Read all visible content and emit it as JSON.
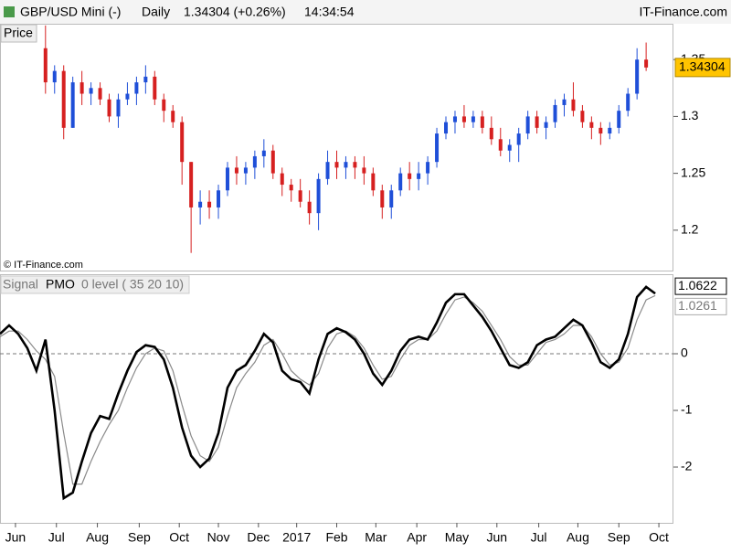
{
  "header": {
    "instrument": "GBP/USD Mini (-)",
    "period": "Daily",
    "quote": "1.34304 (+0.26%)",
    "time": "14:34:54",
    "brand": "IT-Finance.com"
  },
  "chart_data": [
    {
      "type": "candlestick",
      "panel_label": "Price",
      "watermark": "© IT-Finance.com",
      "up_color": "#1f4fd8",
      "down_color": "#d62020",
      "xlim": [
        0,
        74
      ],
      "ylim": [
        1.1645,
        1.3815
      ],
      "yticks": [
        1.2,
        1.25,
        1.3,
        1.35
      ],
      "x": [
        5,
        6,
        7,
        8,
        9,
        10,
        11,
        12,
        13,
        14,
        15,
        16,
        17,
        18,
        19,
        20,
        21,
        22,
        23,
        24,
        25,
        26,
        27,
        28,
        29,
        30,
        31,
        32,
        33,
        34,
        35,
        36,
        37,
        38,
        39,
        40,
        41,
        42,
        43,
        44,
        45,
        46,
        47,
        48,
        49,
        50,
        51,
        52,
        53,
        54,
        55,
        56,
        57,
        58,
        59,
        60,
        61,
        62,
        63,
        64,
        65,
        66,
        67,
        68,
        69,
        70,
        71
      ],
      "open": [
        1.36,
        1.33,
        1.34,
        1.29,
        1.33,
        1.32,
        1.325,
        1.315,
        1.3,
        1.315,
        1.32,
        1.33,
        1.335,
        1.315,
        1.305,
        1.295,
        1.26,
        1.22,
        1.225,
        1.22,
        1.235,
        1.255,
        1.25,
        1.255,
        1.265,
        1.27,
        1.25,
        1.24,
        1.235,
        1.225,
        1.215,
        1.245,
        1.26,
        1.255,
        1.26,
        1.255,
        1.25,
        1.235,
        1.22,
        1.235,
        1.25,
        1.245,
        1.25,
        1.26,
        1.285,
        1.295,
        1.3,
        1.295,
        1.3,
        1.29,
        1.28,
        1.27,
        1.275,
        1.285,
        1.3,
        1.29,
        1.295,
        1.31,
        1.315,
        1.305,
        1.295,
        1.29,
        1.285,
        1.29,
        1.305,
        1.32,
        1.35
      ],
      "high": [
        1.38,
        1.345,
        1.345,
        1.335,
        1.34,
        1.33,
        1.33,
        1.32,
        1.32,
        1.33,
        1.335,
        1.345,
        1.34,
        1.32,
        1.31,
        1.3,
        1.26,
        1.235,
        1.235,
        1.24,
        1.26,
        1.265,
        1.26,
        1.27,
        1.28,
        1.275,
        1.255,
        1.245,
        1.245,
        1.235,
        1.25,
        1.27,
        1.27,
        1.265,
        1.265,
        1.265,
        1.255,
        1.24,
        1.24,
        1.255,
        1.26,
        1.26,
        1.265,
        1.29,
        1.3,
        1.305,
        1.31,
        1.305,
        1.305,
        1.3,
        1.29,
        1.28,
        1.29,
        1.305,
        1.305,
        1.3,
        1.315,
        1.32,
        1.33,
        1.31,
        1.3,
        1.295,
        1.295,
        1.31,
        1.325,
        1.36,
        1.365
      ],
      "low": [
        1.32,
        1.32,
        1.28,
        1.29,
        1.31,
        1.31,
        1.31,
        1.295,
        1.29,
        1.31,
        1.31,
        1.32,
        1.31,
        1.295,
        1.29,
        1.24,
        1.18,
        1.205,
        1.21,
        1.21,
        1.23,
        1.24,
        1.24,
        1.245,
        1.255,
        1.245,
        1.23,
        1.225,
        1.22,
        1.205,
        1.2,
        1.24,
        1.245,
        1.245,
        1.245,
        1.24,
        1.23,
        1.21,
        1.21,
        1.23,
        1.235,
        1.235,
        1.24,
        1.255,
        1.28,
        1.285,
        1.29,
        1.29,
        1.285,
        1.275,
        1.265,
        1.26,
        1.26,
        1.28,
        1.285,
        1.28,
        1.29,
        1.3,
        1.3,
        1.29,
        1.28,
        1.275,
        1.28,
        1.285,
        1.3,
        1.315,
        1.34
      ],
      "close": [
        1.33,
        1.34,
        1.29,
        1.33,
        1.32,
        1.325,
        1.315,
        1.3,
        1.315,
        1.32,
        1.33,
        1.335,
        1.315,
        1.305,
        1.295,
        1.26,
        1.22,
        1.225,
        1.22,
        1.235,
        1.255,
        1.25,
        1.255,
        1.265,
        1.27,
        1.25,
        1.24,
        1.235,
        1.225,
        1.215,
        1.245,
        1.26,
        1.255,
        1.26,
        1.255,
        1.25,
        1.235,
        1.22,
        1.235,
        1.25,
        1.245,
        1.25,
        1.26,
        1.285,
        1.295,
        1.3,
        1.295,
        1.3,
        1.29,
        1.28,
        1.27,
        1.275,
        1.285,
        1.3,
        1.29,
        1.295,
        1.31,
        1.315,
        1.305,
        1.295,
        1.29,
        1.285,
        1.29,
        1.305,
        1.32,
        1.35,
        1.34304
      ]
    },
    {
      "type": "line",
      "xlim": [
        0,
        74
      ],
      "ylim": [
        -2.984,
        1.403
      ],
      "yticks": [
        -2,
        -1,
        0
      ],
      "reference_line": 0,
      "reference_label": "0 level ( 35 20 10)",
      "xticks": [
        {
          "value": 1.7,
          "label": "Jun"
        },
        {
          "value": 6.2,
          "label": "Jul"
        },
        {
          "value": 10.7,
          "label": "Aug"
        },
        {
          "value": 15.3,
          "label": "Sep"
        },
        {
          "value": 19.7,
          "label": "Oct"
        },
        {
          "value": 24,
          "label": "Nov"
        },
        {
          "value": 28.4,
          "label": "Dec"
        },
        {
          "value": 32.6,
          "label": "2017"
        },
        {
          "value": 37,
          "label": "Feb"
        },
        {
          "value": 41.3,
          "label": "Mar"
        },
        {
          "value": 45.8,
          "label": "Apr"
        },
        {
          "value": 50.2,
          "label": "May"
        },
        {
          "value": 54.6,
          "label": "Jun"
        },
        {
          "value": 59.2,
          "label": "Jul"
        },
        {
          "value": 63.5,
          "label": "Aug"
        },
        {
          "value": 68,
          "label": "Sep"
        },
        {
          "value": 72.4,
          "label": "Oct"
        }
      ],
      "x": [
        0,
        1,
        2,
        3,
        4,
        5,
        6,
        7,
        8,
        9,
        10,
        11,
        12,
        13,
        14,
        15,
        16,
        17,
        18,
        19,
        20,
        21,
        22,
        23,
        24,
        25,
        26,
        27,
        28,
        29,
        30,
        31,
        32,
        33,
        34,
        35,
        36,
        37,
        38,
        39,
        40,
        41,
        42,
        43,
        44,
        45,
        46,
        47,
        48,
        49,
        50,
        51,
        52,
        53,
        54,
        55,
        56,
        57,
        58,
        59,
        60,
        61,
        62,
        63,
        64,
        65,
        66,
        67,
        68,
        69,
        70,
        71,
        72
      ],
      "series": [
        {
          "name": "Signal",
          "color": "#8a8a8a",
          "values": [
            0.3,
            0.4,
            0.4,
            0.25,
            0.05,
            -0.1,
            -0.4,
            -1.4,
            -2.3,
            -2.3,
            -1.9,
            -1.55,
            -1.25,
            -1.0,
            -0.6,
            -0.25,
            0.0,
            0.1,
            0.05,
            -0.3,
            -0.9,
            -1.45,
            -1.8,
            -1.9,
            -1.65,
            -1.1,
            -0.6,
            -0.35,
            -0.15,
            0.15,
            0.25,
            0.0,
            -0.3,
            -0.45,
            -0.55,
            -0.35,
            0.1,
            0.35,
            0.4,
            0.3,
            0.1,
            -0.2,
            -0.45,
            -0.4,
            -0.1,
            0.15,
            0.25,
            0.25,
            0.4,
            0.7,
            0.95,
            1.0,
            0.9,
            0.75,
            0.5,
            0.25,
            -0.05,
            -0.2,
            -0.2,
            0.0,
            0.2,
            0.25,
            0.35,
            0.5,
            0.5,
            0.3,
            0.0,
            -0.2,
            -0.15,
            0.1,
            0.6,
            0.95,
            1.0261
          ]
        },
        {
          "name": "PMO",
          "color": "#000000",
          "values": [
            0.35,
            0.5,
            0.35,
            0.1,
            -0.3,
            0.25,
            -1.0,
            -2.55,
            -2.45,
            -1.9,
            -1.4,
            -1.1,
            -1.15,
            -0.7,
            -0.3,
            0.03,
            0.15,
            0.12,
            -0.1,
            -0.6,
            -1.3,
            -1.8,
            -2.0,
            -1.85,
            -1.4,
            -0.6,
            -0.3,
            -0.2,
            0.05,
            0.35,
            0.2,
            -0.3,
            -0.45,
            -0.5,
            -0.7,
            -0.1,
            0.35,
            0.45,
            0.38,
            0.25,
            0.0,
            -0.35,
            -0.55,
            -0.3,
            0.05,
            0.25,
            0.3,
            0.25,
            0.55,
            0.9,
            1.05,
            1.05,
            0.85,
            0.65,
            0.4,
            0.1,
            -0.2,
            -0.25,
            -0.15,
            0.15,
            0.25,
            0.3,
            0.45,
            0.6,
            0.5,
            0.2,
            -0.15,
            -0.25,
            -0.1,
            0.35,
            1.0,
            1.18,
            1.0622
          ]
        }
      ]
    }
  ]
}
